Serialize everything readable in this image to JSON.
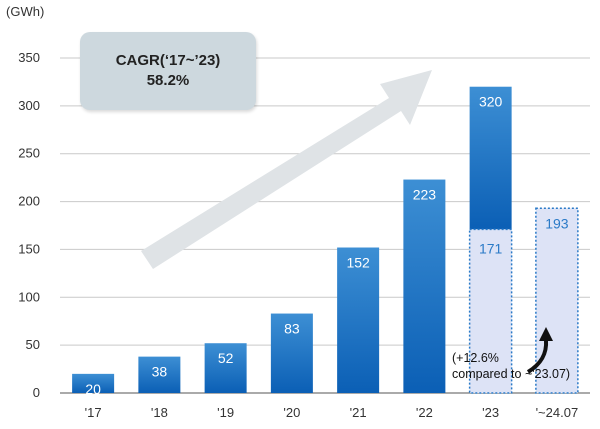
{
  "chart_data": {
    "type": "bar",
    "unit_label": "(GWh)",
    "categories": [
      "'17",
      "'18",
      "'19",
      "'20",
      "'21",
      "'22",
      "'23",
      "'~24.07"
    ],
    "values": [
      20,
      38,
      52,
      83,
      152,
      223,
      320,
      193
    ],
    "value_labels": [
      "20",
      "38",
      "52",
      "83",
      "152",
      "223",
      "320",
      "193"
    ],
    "partial_segment": {
      "category": "'23",
      "value": 171,
      "label": "171"
    },
    "dashed_bar": {
      "category": "'~24.07",
      "value": 193
    },
    "ylim": [
      0,
      350
    ],
    "yticks": [
      0,
      50,
      100,
      150,
      200,
      250,
      300,
      350
    ],
    "grid": true,
    "colors": {
      "bar_top": "#3d8fd4",
      "bar_bottom": "#0b5fb5",
      "dashed_fill": "#dde3f6",
      "dashed_stroke": "#2a7ac7",
      "partial_label": "#2a7ac7",
      "grid": "#c9c9c9",
      "arrow": "#dfe3e6",
      "cagr_box": "#cdd8de"
    }
  },
  "annotations": {
    "cagr_title": "CAGR(‘17~’23)",
    "cagr_value": "58.2%",
    "note_line1": "(+12.6%",
    "note_line2": "compared to ~'23.07)"
  }
}
